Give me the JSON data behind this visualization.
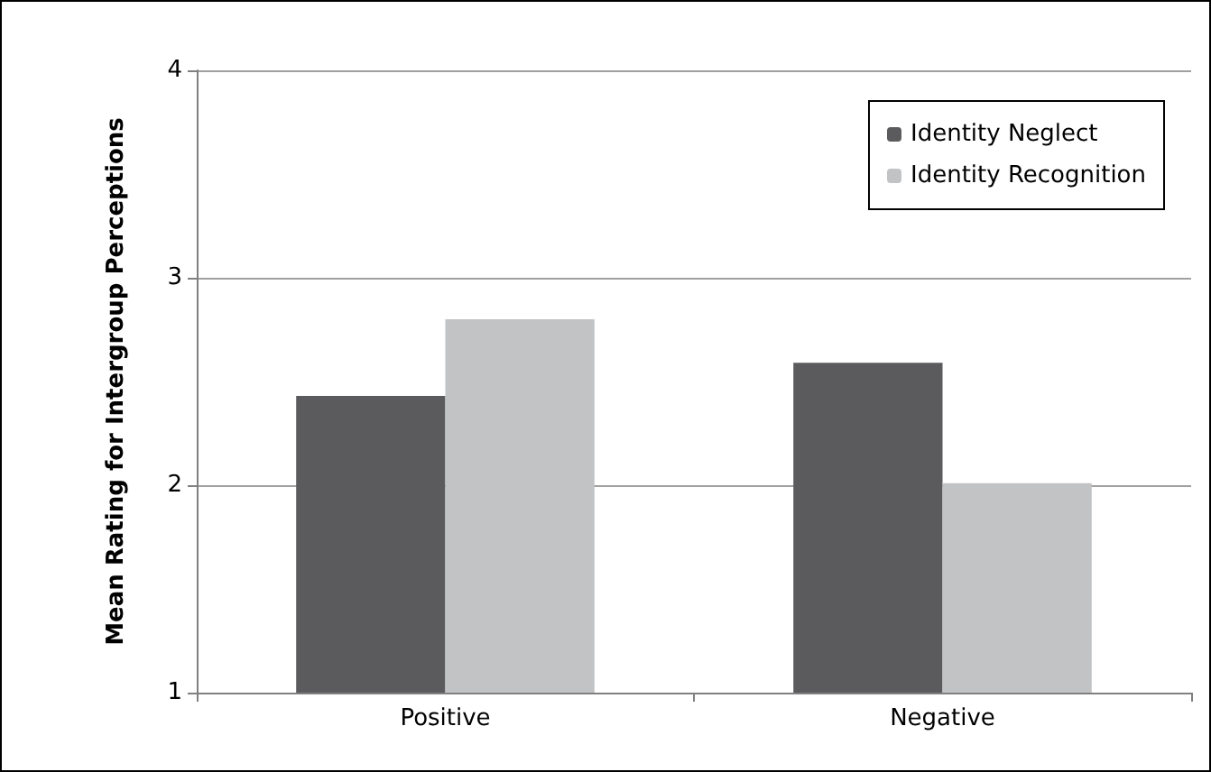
{
  "chart_data": {
    "type": "bar",
    "ylabel": "Mean Rating for Intergroup Perceptions",
    "categories": [
      "Positive",
      "Negative"
    ],
    "series": [
      {
        "name": "Identity Neglect",
        "color": "#5b5b5d",
        "values": [
          2.43,
          2.59
        ]
      },
      {
        "name": "Identity Recognition",
        "color": "#c2c3c5",
        "values": [
          2.8,
          2.01
        ]
      }
    ],
    "ylim": [
      1,
      4
    ],
    "yticks": [
      1,
      2,
      3,
      4
    ],
    "grid": "y",
    "legend": "top right"
  }
}
